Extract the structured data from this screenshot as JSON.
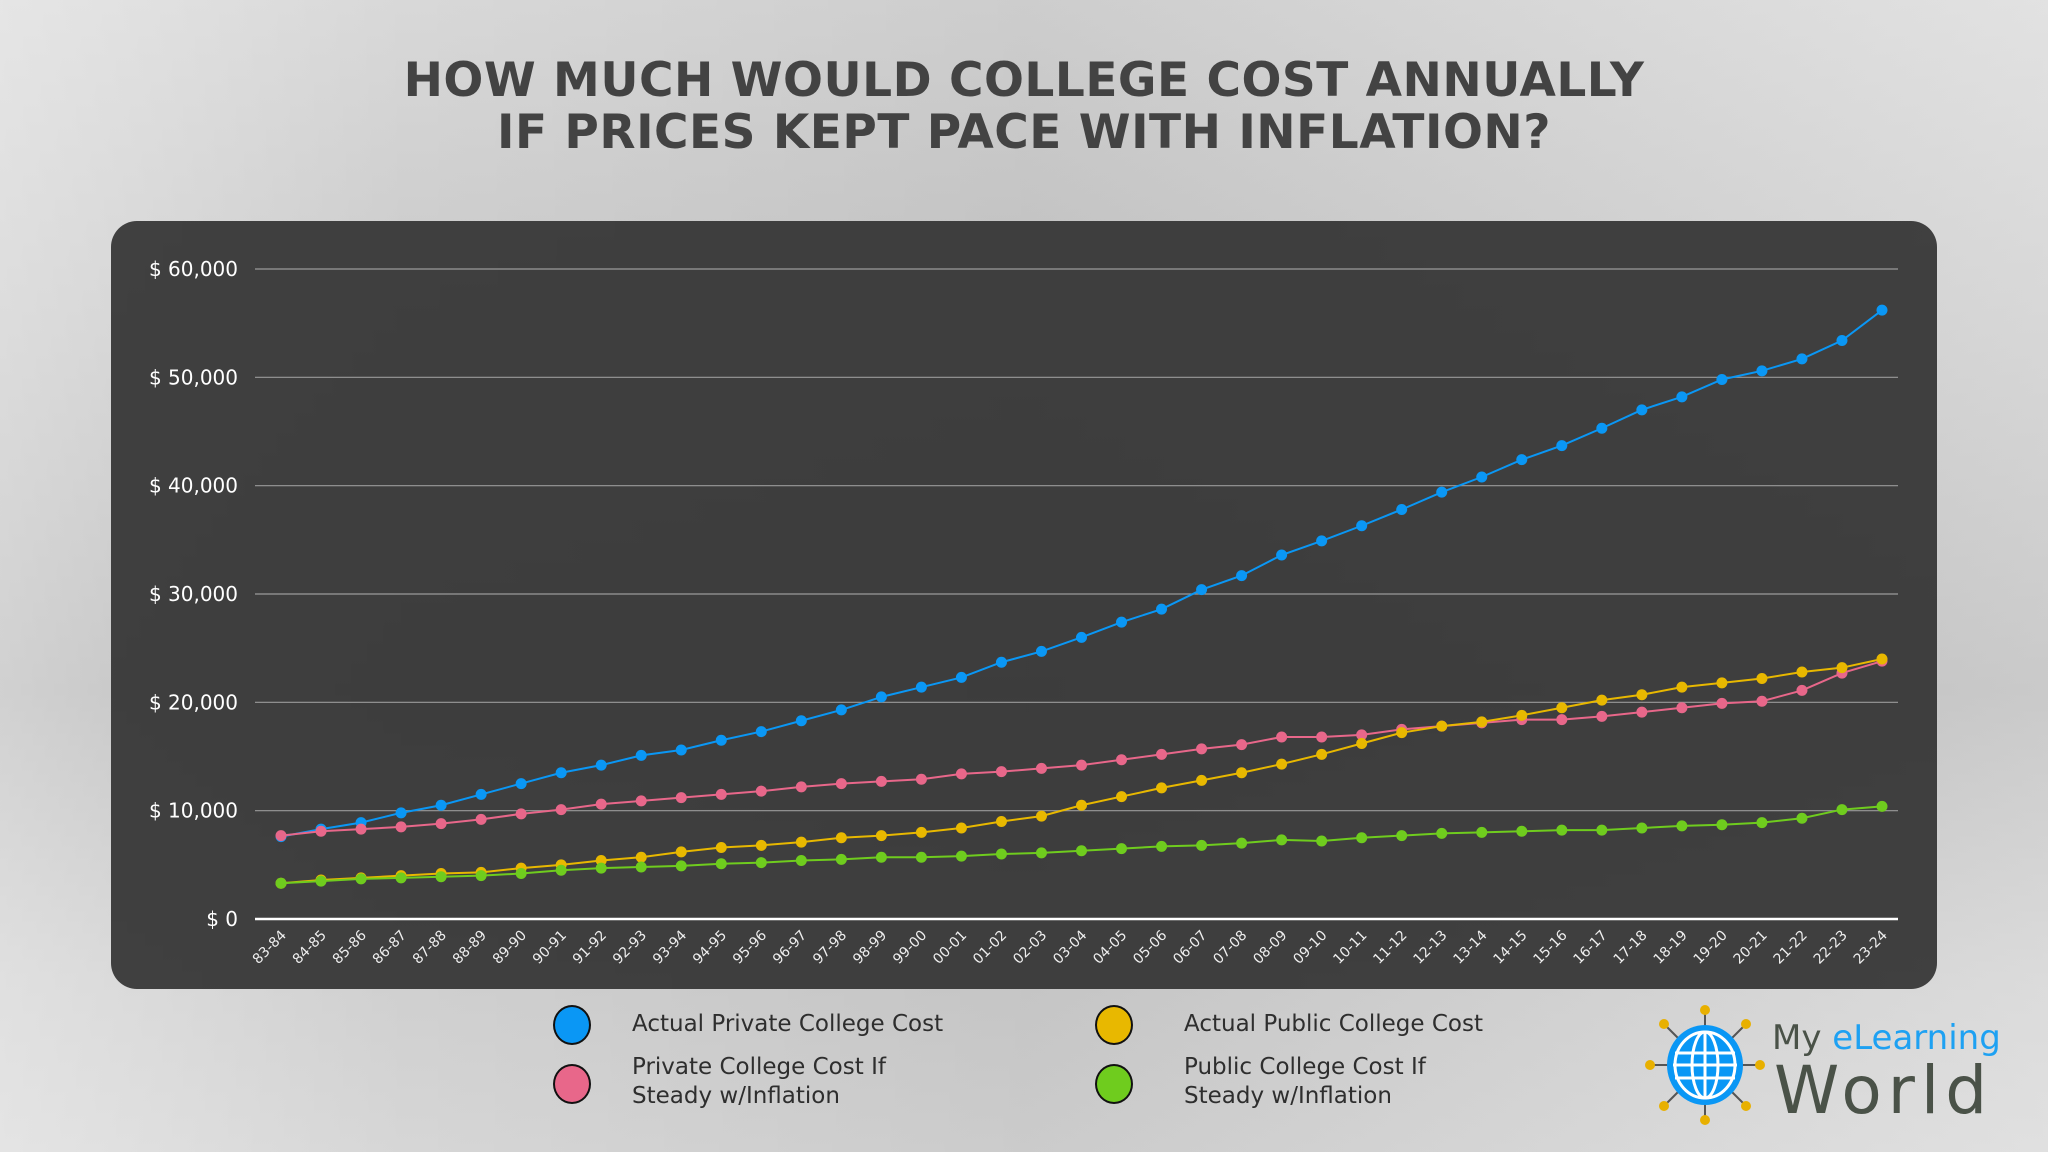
{
  "title_lines": [
    "HOW MUCH WOULD COLLEGE COST ANNUALLY",
    "IF PRICES KEPT PACE WITH INFLATION?"
  ],
  "chart_data": {
    "type": "line",
    "title": "HOW MUCH WOULD COLLEGE COST ANNUALLY IF PRICES KEPT PACE WITH INFLATION?",
    "ylim": [
      0,
      60000
    ],
    "yticks": [
      0,
      10000,
      20000,
      30000,
      40000,
      50000,
      60000
    ],
    "ytick_labels": [
      "$ 0",
      "$ 10,000",
      "$ 20,000",
      "$ 30,000",
      "$ 40,000",
      "$ 50,000",
      "$ 60,000"
    ],
    "grid": true,
    "legend_position": "bottom",
    "categories": [
      "83-84",
      "84-85",
      "85-86",
      "86-87",
      "87-88",
      "88-89",
      "89-90",
      "90-91",
      "91-92",
      "92-93",
      "93-94",
      "94-95",
      "95-96",
      "96-97",
      "97-98",
      "98-99",
      "99-00",
      "00-01",
      "01-02",
      "02-03",
      "03-04",
      "04-05",
      "05-06",
      "06-07",
      "07-08",
      "08-09",
      "09-10",
      "10-11",
      "11-12",
      "12-13",
      "13-14",
      "14-15",
      "15-16",
      "16-17",
      "17-18",
      "18-19",
      "19-20",
      "20-21",
      "21-22",
      "22-23",
      "23-24"
    ],
    "series": [
      {
        "name": "Actual Private College Cost",
        "color": "#0a97f5",
        "values": [
          7600,
          8300,
          8900,
          9800,
          10500,
          11500,
          12500,
          13500,
          14200,
          15100,
          15600,
          16500,
          17300,
          18300,
          19300,
          20500,
          21400,
          22300,
          23700,
          24700,
          26000,
          27400,
          28600,
          30400,
          31700,
          33600,
          34900,
          36300,
          37800,
          39400,
          40800,
          42400,
          43700,
          45300,
          47000,
          48200,
          49800,
          50600,
          51700,
          53400,
          56200
        ]
      },
      {
        "name": "Private College Cost If Steady w/Inflation",
        "color": "#e8678a",
        "values": [
          7700,
          8100,
          8300,
          8500,
          8800,
          9200,
          9700,
          10100,
          10600,
          10900,
          11200,
          11500,
          11800,
          12200,
          12500,
          12700,
          12900,
          13400,
          13600,
          13900,
          14200,
          14700,
          15200,
          15700,
          16100,
          16800,
          16800,
          17000,
          17500,
          17800,
          18100,
          18400,
          18400,
          18700,
          19100,
          19500,
          19900,
          20100,
          21100,
          22700,
          23800
        ]
      },
      {
        "name": "Actual Public College Cost",
        "color": "#e8b800",
        "values": [
          3300,
          3600,
          3800,
          4000,
          4200,
          4300,
          4700,
          5000,
          5400,
          5700,
          6200,
          6600,
          6800,
          7100,
          7500,
          7700,
          8000,
          8400,
          9000,
          9500,
          10500,
          11300,
          12100,
          12800,
          13500,
          14300,
          15200,
          16200,
          17200,
          17800,
          18200,
          18800,
          19500,
          20200,
          20700,
          21400,
          21800,
          22200,
          22800,
          23200,
          24000
        ]
      },
      {
        "name": "Public College Cost If Steady w/Inflation",
        "color": "#6fcc1e",
        "values": [
          3300,
          3500,
          3700,
          3800,
          3900,
          4000,
          4200,
          4500,
          4700,
          4800,
          4900,
          5100,
          5200,
          5400,
          5500,
          5700,
          5700,
          5800,
          6000,
          6100,
          6300,
          6500,
          6700,
          6800,
          7000,
          7300,
          7200,
          7500,
          7700,
          7900,
          8000,
          8100,
          8200,
          8200,
          8400,
          8600,
          8700,
          8900,
          9300,
          10100,
          10400
        ]
      }
    ]
  },
  "legend": [
    {
      "label": "Actual Private College Cost",
      "color": "#0a97f5"
    },
    {
      "label": "Private College Cost If\nSteady w/Inflation",
      "color": "#e8678a"
    },
    {
      "label": "Actual Public College Cost",
      "color": "#e8b800"
    },
    {
      "label": "Public College Cost If\nSteady w/Inflation",
      "color": "#6fcc1e"
    }
  ],
  "logo": {
    "my": "My",
    "elearning": "eLearning",
    "world": "World"
  }
}
